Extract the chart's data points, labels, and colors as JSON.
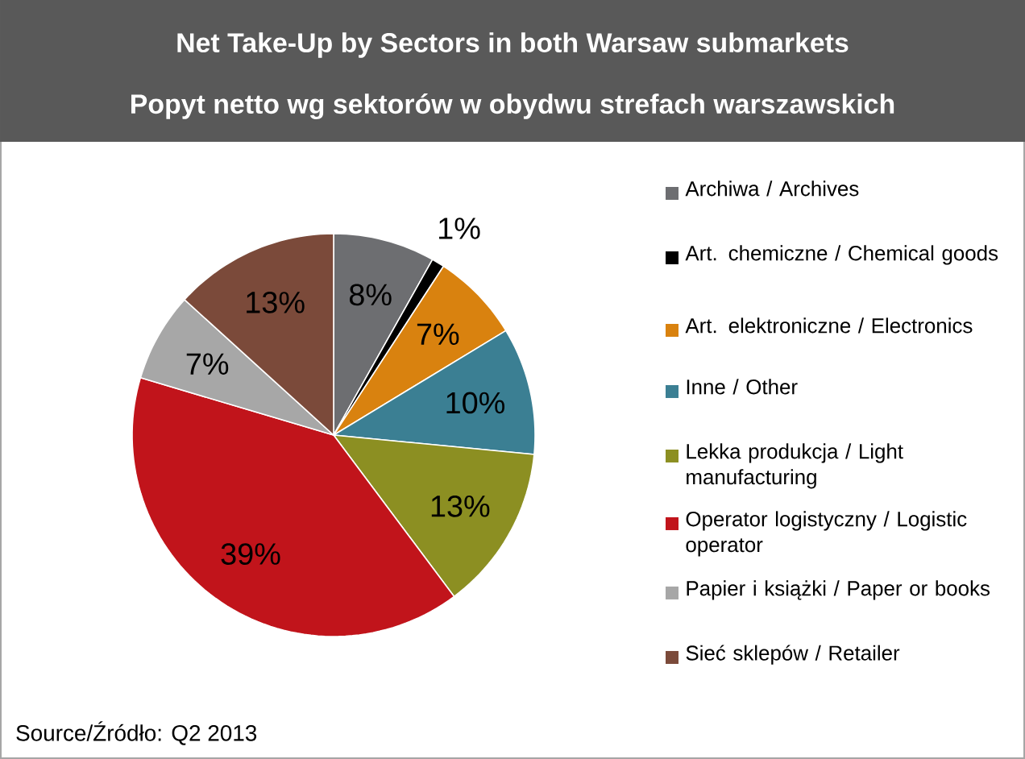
{
  "chart_data": {
    "type": "pie",
    "title": "Net Take-Up by Sectors in both Warsaw submarkets",
    "subtitle": "Popyt netto wg sektorów w obydwu strefach warszawskich",
    "categories": [
      "Archiwa / Archives",
      "Art. chemiczne / Chemical goods",
      "Art. elektroniczne / Electronics",
      "Inne / Other",
      "Lekka produkcja / Light manufacturing",
      "Operator logistyczny / Logistic operator",
      "Papier i książki / Paper or books",
      "Sieć sklepów / Retailer"
    ],
    "values": [
      8,
      1,
      7,
      10,
      13,
      39,
      7,
      13
    ],
    "value_labels": [
      "8%",
      "1%",
      "7%",
      "10%",
      "13%",
      "39%",
      "7%",
      "13%"
    ],
    "colors": [
      "#6d6e71",
      "#000000",
      "#d9820f",
      "#3b7f93",
      "#8c8f22",
      "#c1141b",
      "#a7a7a7",
      "#7b4a3a"
    ],
    "legend": "right",
    "annotations": [
      "Source/Źródło: Q2 2013"
    ]
  }
}
